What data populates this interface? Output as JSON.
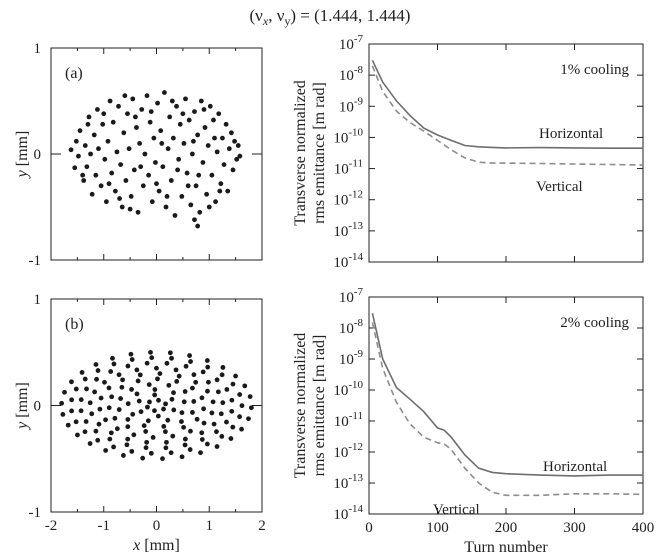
{
  "figure_title": "(ν",
  "figure_title_x": "x",
  "figure_title_mid": ", ν",
  "figure_title_y": "y",
  "figure_title_end": ") = (1.444, 1.444)",
  "chart_data": [
    {
      "panel": "(a)",
      "type": "scatter",
      "xlabel_var": "x",
      "xlabel_unit": "[mm]",
      "ylabel_var": "y",
      "ylabel_unit": "[mm]",
      "xlim": [
        -2,
        2
      ],
      "ylim": [
        -1,
        1
      ],
      "xticks": [
        "-2",
        "-1",
        "0",
        "1",
        "2"
      ],
      "yticks": [
        "-1",
        "0",
        "1"
      ],
      "show_xticklabels": false,
      "points": [
        [
          -1.62,
          0.04
        ],
        [
          -1.55,
          -0.13
        ],
        [
          -1.52,
          0.12
        ],
        [
          -1.48,
          -0.02
        ],
        [
          -1.45,
          0.22
        ],
        [
          -1.38,
          -0.25
        ],
        [
          -1.35,
          0.08
        ],
        [
          -1.32,
          -0.12
        ],
        [
          -1.28,
          0.35
        ],
        [
          -1.25,
          0.0
        ],
        [
          -1.22,
          -0.38
        ],
        [
          -1.18,
          0.18
        ],
        [
          -1.15,
          -0.2
        ],
        [
          -1.12,
          0.42
        ],
        [
          -1.1,
          0.05
        ],
        [
          -1.05,
          -0.3
        ],
        [
          -1.02,
          0.28
        ],
        [
          -0.98,
          -0.05
        ],
        [
          -0.95,
          -0.45
        ],
        [
          -0.92,
          0.12
        ],
        [
          -0.88,
          0.5
        ],
        [
          -0.85,
          -0.18
        ],
        [
          -0.82,
          0.3
        ],
        [
          -0.78,
          -0.35
        ],
        [
          -0.75,
          0.02
        ],
        [
          -0.72,
          0.45
        ],
        [
          -0.68,
          -0.1
        ],
        [
          -0.65,
          -0.5
        ],
        [
          -0.62,
          0.2
        ],
        [
          -0.58,
          -0.25
        ],
        [
          -0.55,
          0.38
        ],
        [
          -0.52,
          0.05
        ],
        [
          -0.48,
          -0.4
        ],
        [
          -0.45,
          0.52
        ],
        [
          -0.42,
          -0.15
        ],
        [
          -0.38,
          0.25
        ],
        [
          -0.35,
          -0.55
        ],
        [
          -0.32,
          0.1
        ],
        [
          -0.28,
          0.42
        ],
        [
          -0.25,
          -0.3
        ],
        [
          -0.22,
          0.0
        ],
        [
          -0.18,
          0.55
        ],
        [
          -0.15,
          -0.2
        ],
        [
          -0.12,
          0.3
        ],
        [
          -0.08,
          -0.45
        ],
        [
          -0.05,
          0.15
        ],
        [
          -0.02,
          -0.08
        ],
        [
          0.02,
          0.48
        ],
        [
          0.05,
          -0.35
        ],
        [
          0.08,
          0.22
        ],
        [
          0.12,
          -0.12
        ],
        [
          0.15,
          0.58
        ],
        [
          0.18,
          -0.5
        ],
        [
          0.22,
          0.05
        ],
        [
          0.25,
          0.35
        ],
        [
          0.28,
          -0.25
        ],
        [
          0.32,
          0.15
        ],
        [
          0.35,
          -0.58
        ],
        [
          0.38,
          0.45
        ],
        [
          0.42,
          -0.05
        ],
        [
          0.45,
          0.28
        ],
        [
          0.48,
          -0.4
        ],
        [
          0.52,
          0.1
        ],
        [
          0.55,
          0.52
        ],
        [
          0.58,
          -0.18
        ],
        [
          0.62,
          0.32
        ],
        [
          0.65,
          -0.48
        ],
        [
          0.68,
          0.0
        ],
        [
          0.72,
          0.4
        ],
        [
          0.75,
          -0.3
        ],
        [
          0.78,
          0.18
        ],
        [
          0.82,
          -0.55
        ],
        [
          0.85,
          0.5
        ],
        [
          0.88,
          -0.08
        ],
        [
          0.92,
          0.25
        ],
        [
          0.95,
          -0.38
        ],
        [
          0.98,
          0.08
        ],
        [
          1.02,
          0.45
        ],
        [
          1.05,
          -0.2
        ],
        [
          1.08,
          0.32
        ],
        [
          1.12,
          -0.45
        ],
        [
          1.15,
          0.02
        ],
        [
          1.18,
          0.38
        ],
        [
          1.22,
          -0.28
        ],
        [
          1.25,
          0.15
        ],
        [
          1.28,
          -0.1
        ],
        [
          1.32,
          0.28
        ],
        [
          1.35,
          -0.35
        ],
        [
          1.38,
          0.05
        ],
        [
          1.42,
          0.2
        ],
        [
          1.45,
          -0.15
        ],
        [
          1.48,
          0.12
        ],
        [
          1.52,
          -0.05
        ],
        [
          1.55,
          0.08
        ],
        [
          1.58,
          -0.02
        ],
        [
          -1.4,
          -0.2
        ],
        [
          -1.3,
          0.28
        ],
        [
          -1.0,
          0.38
        ],
        [
          -0.9,
          -0.28
        ],
        [
          -0.7,
          -0.42
        ],
        [
          -0.6,
          0.55
        ],
        [
          -0.4,
          0.35
        ],
        [
          -0.3,
          -0.12
        ],
        [
          -0.1,
          0.4
        ],
        [
          0.0,
          -0.28
        ],
        [
          0.1,
          0.1
        ],
        [
          0.2,
          -0.4
        ],
        [
          0.3,
          0.5
        ],
        [
          0.4,
          -0.15
        ],
        [
          0.5,
          0.38
        ],
        [
          0.6,
          -0.3
        ],
        [
          0.7,
          0.12
        ],
        [
          0.8,
          -0.2
        ],
        [
          0.9,
          0.42
        ],
        [
          1.0,
          -0.5
        ],
        [
          1.1,
          0.15
        ],
        [
          1.2,
          -0.35
        ],
        [
          0.72,
          -0.62
        ],
        [
          0.78,
          -0.68
        ],
        [
          -0.5,
          -0.52
        ]
      ]
    },
    {
      "panel": "",
      "type": "line",
      "yscale": "log",
      "ylabel_lines": [
        "Transverse normalized",
        "rms emittance [m rad]"
      ],
      "xlabel": "",
      "xlim": [
        0,
        400
      ],
      "ylim_exp": [
        -14,
        -7
      ],
      "xticks": [
        "0",
        "100",
        "200",
        "300",
        "400"
      ],
      "show_xticklabels": false,
      "annotation": "1% cooling",
      "series": [
        {
          "name": "Horizontal",
          "color": "#6e6e6e",
          "dashed": false,
          "x": [
            5,
            20,
            40,
            60,
            80,
            100,
            120,
            140,
            160,
            180,
            200,
            250,
            300,
            350,
            400
          ],
          "y": [
            3e-08,
            6e-09,
            1.5e-09,
            5e-10,
            2e-10,
            1.2e-10,
            8e-11,
            5.5e-11,
            5e-11,
            4.8e-11,
            4.6e-11,
            4.7e-11,
            4.6e-11,
            4.5e-11,
            4.5e-11
          ]
        },
        {
          "name": "Vertical",
          "color": "#8c8c8c",
          "dashed": true,
          "x": [
            5,
            20,
            40,
            60,
            80,
            100,
            120,
            140,
            160,
            180,
            200,
            250,
            300,
            350,
            400
          ],
          "y": [
            2e-08,
            3e-09,
            7e-10,
            3e-10,
            1.6e-10,
            8e-11,
            4e-11,
            2.2e-11,
            1.6e-11,
            1.5e-11,
            1.5e-11,
            1.45e-11,
            1.4e-11,
            1.35e-11,
            1.3e-11
          ]
        }
      ]
    },
    {
      "panel": "(b)",
      "type": "scatter",
      "xlabel_var": "x",
      "xlabel_unit": "[mm]",
      "ylabel_var": "y",
      "ylabel_unit": "[mm]",
      "xlim": [
        -2,
        2
      ],
      "ylim": [
        -1,
        1
      ],
      "xticks": [
        "-2",
        "-1",
        "0",
        "1",
        "2"
      ],
      "yticks": [
        "-1",
        "0",
        "1"
      ],
      "show_xticklabels": true,
      "points_rule": "concentric ellipses, semi-axes up to 1.8 mm (x) and 0.5 mm (y)"
    },
    {
      "panel": "",
      "type": "line",
      "yscale": "log",
      "ylabel_lines": [
        "Transverse normalized",
        "rms emittance [m rad]"
      ],
      "xlabel": "Turn number",
      "xlim": [
        0,
        400
      ],
      "ylim_exp": [
        -14,
        -7
      ],
      "xticks": [
        "0",
        "100",
        "200",
        "300",
        "400"
      ],
      "show_xticklabels": true,
      "annotation": "2% cooling",
      "series": [
        {
          "name": "Horizontal",
          "color": "#6e6e6e",
          "dashed": false,
          "x": [
            5,
            20,
            40,
            60,
            80,
            100,
            110,
            120,
            140,
            160,
            180,
            200,
            250,
            300,
            350,
            400
          ],
          "y": [
            3e-08,
            1e-09,
            1.2e-10,
            5e-11,
            2e-11,
            6e-12,
            5e-12,
            3e-12,
            8e-13,
            3e-13,
            2.2e-13,
            2e-13,
            1.8e-13,
            1.7e-13,
            1.8e-13,
            1.8e-13
          ]
        },
        {
          "name": "Vertical",
          "color": "#8c8c8c",
          "dashed": true,
          "x": [
            5,
            20,
            40,
            60,
            80,
            100,
            110,
            120,
            140,
            160,
            180,
            200,
            250,
            300,
            350,
            400
          ],
          "y": [
            1.5e-08,
            5e-10,
            4e-11,
            8e-12,
            3e-12,
            2e-12,
            1.8e-12,
            1.2e-12,
            3e-13,
            1e-13,
            5e-14,
            4e-14,
            4e-14,
            4.5e-14,
            4.5e-14,
            4.3e-14
          ]
        }
      ]
    }
  ]
}
